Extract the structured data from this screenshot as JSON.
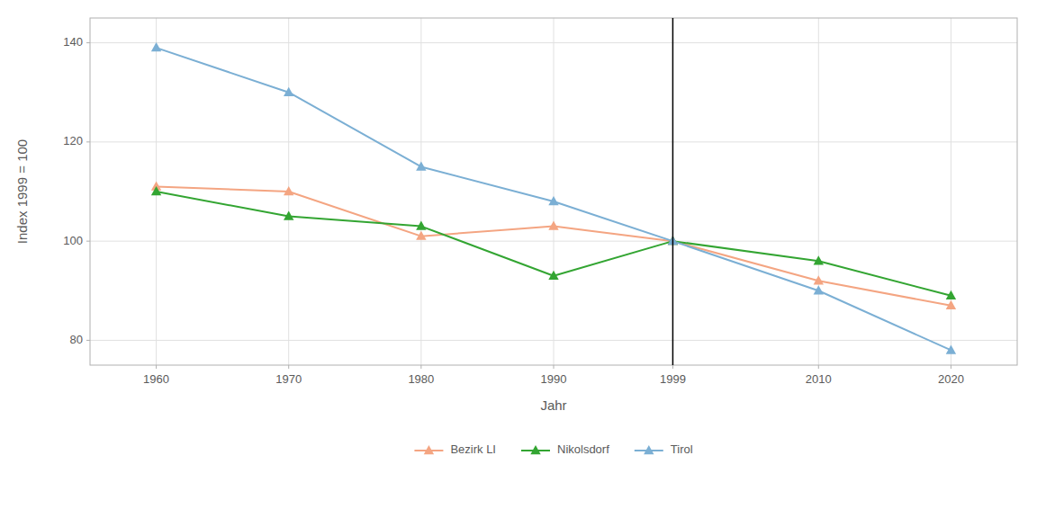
{
  "chart_data": {
    "type": "line",
    "x_label": "Jahr",
    "y_label": "Index 1999 = 100",
    "x": [
      1960,
      1970,
      1980,
      1990,
      1999,
      2010,
      2020
    ],
    "series": [
      {
        "name": "Bezirk LI",
        "color": "#F4A582",
        "marker": "triangle",
        "values": [
          111,
          110,
          101,
          103,
          100,
          92,
          87
        ]
      },
      {
        "name": "Nikolsdorf",
        "color": "#33A532",
        "marker": "triangle",
        "values": [
          110,
          105,
          103,
          93,
          100,
          96,
          89
        ]
      },
      {
        "name": "Tirol",
        "color": "#7BAFD4",
        "marker": "triangle",
        "values": [
          139,
          130,
          115,
          108,
          100,
          90,
          78
        ]
      }
    ],
    "vlines": [
      1999
    ],
    "xlim": [
      1955,
      2025
    ],
    "xticks": [
      1960,
      1970,
      1980,
      1990,
      1999,
      2010,
      2020
    ],
    "ylim": [
      75,
      145
    ],
    "yticks": [
      80,
      100,
      120,
      140
    ],
    "grid": true,
    "legend": "bottom"
  }
}
